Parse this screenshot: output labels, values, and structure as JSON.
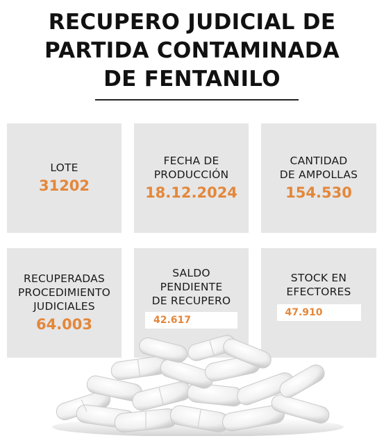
{
  "title": {
    "line1": "RECUPERO JUDICIAL DE",
    "line2": "PARTIDA CONTAMINADA",
    "line3": "DE FENTANILO"
  },
  "cards": [
    {
      "label_lines": [
        "LOTE"
      ],
      "value": "31202"
    },
    {
      "label_lines": [
        "FECHA DE",
        "PRODUCCIÓN"
      ],
      "value": "18.12.2024"
    },
    {
      "label_lines": [
        "CANTIDAD",
        "DE AMPOLLAS"
      ],
      "value": "154.530"
    },
    {
      "label_lines": [
        "RECUPERADAS",
        "PROCEDIMIENTO",
        "JUDICIALES"
      ],
      "value": "64.003"
    },
    {
      "label_lines": [
        "SALDO",
        "PENDIENTE",
        "DE RECUPERO"
      ],
      "value": "42.617"
    },
    {
      "label_lines": [
        "STOCK EN",
        "EFECTORES"
      ],
      "value": "47.910"
    }
  ],
  "colors": {
    "accent": "#e3873b",
    "card_bg": "#e6e6e6",
    "text": "#111111"
  }
}
